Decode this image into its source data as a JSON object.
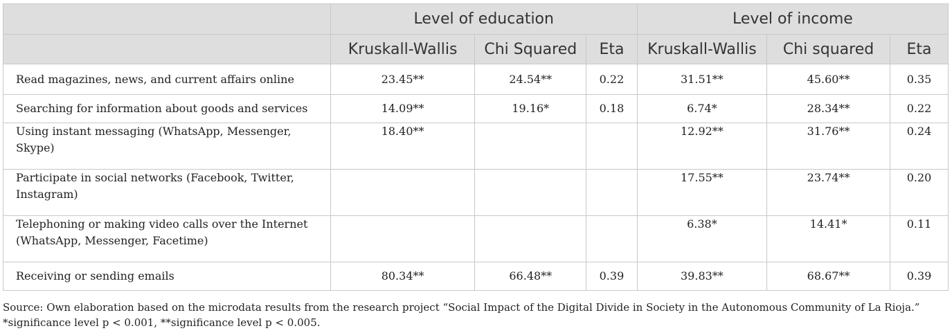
{
  "header": {
    "group_education": "Level of education",
    "group_income": "Level of income",
    "columns": [
      "Kruskall-Wallis",
      "Chi Squared",
      "Eta",
      "Kruskall-Wallis",
      "Chi squared",
      "Eta"
    ]
  },
  "rows": [
    {
      "label": "Read magazines, news, and current affairs online",
      "cells": [
        "23.45**",
        "24.54**",
        "0.22",
        "31.51**",
        "45.60**",
        "0.35"
      ]
    },
    {
      "label": "Searching for information about goods and services",
      "cells": [
        "14.09**",
        "19.16*",
        "0.18",
        "6.74*",
        "28.34**",
        "0.22"
      ]
    },
    {
      "label": "Using instant messaging (WhatsApp, Messenger, Skype)",
      "cells": [
        "18.40**",
        "",
        "",
        "12.92**",
        "31.76**",
        "0.24"
      ]
    },
    {
      "label": "Participate in social networks (Facebook, Twitter, Instagram)",
      "cells": [
        "",
        "",
        "",
        "17.55**",
        "23.74**",
        "0.20"
      ]
    },
    {
      "label": "Telephoning or making video calls over the Internet (WhatsApp, Messenger, Facetime)",
      "cells": [
        "",
        "",
        "",
        "6.38*",
        "14.41*",
        "0.11"
      ]
    },
    {
      "label": "Receiving or sending emails",
      "cells": [
        "80.34**",
        "66.48**",
        "0.39",
        "39.83**",
        "68.67**",
        "0.39"
      ]
    }
  ],
  "footnote": "Source: Own elaboration based on the microdata results from the research project “Social Impact of the Digital Divide in Society in the Autonomous Community of La Rioja.” *significance level p < 0.001, **significance level p < 0.005."
}
